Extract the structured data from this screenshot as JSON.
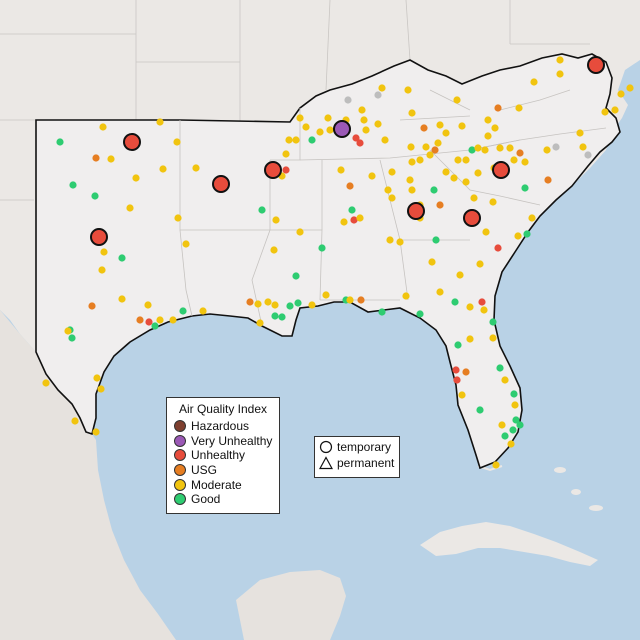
{
  "map": {
    "monitor_types": [
      "temporary",
      "permanent"
    ],
    "colors": {
      "Hazardous": "#7e3f2f",
      "Very Unhealthy": "#9b59b6",
      "Unhealthy": "#e74c3c",
      "USG": "#e67e22",
      "Moderate": "#f1c40f",
      "Good": "#2ecc71",
      "No data": "#bdbdbd"
    },
    "ocean_color": "#b9d2e6",
    "land_color": "#ece9e6",
    "region_fill": "#f0eeee"
  },
  "legend": {
    "title": "Air Quality Index",
    "items": [
      {
        "label": "Hazardous",
        "color": "#7e3f2f"
      },
      {
        "label": "Very Unhealthy",
        "color": "#9b59b6"
      },
      {
        "label": "Unhealthy",
        "color": "#e74c3c"
      },
      {
        "label": "USG",
        "color": "#e67e22"
      },
      {
        "label": "Moderate",
        "color": "#f1c40f"
      },
      {
        "label": "Good",
        "color": "#2ecc71"
      }
    ]
  },
  "type_legend": {
    "temporary": "temporary",
    "permanent": "permanent"
  }
}
